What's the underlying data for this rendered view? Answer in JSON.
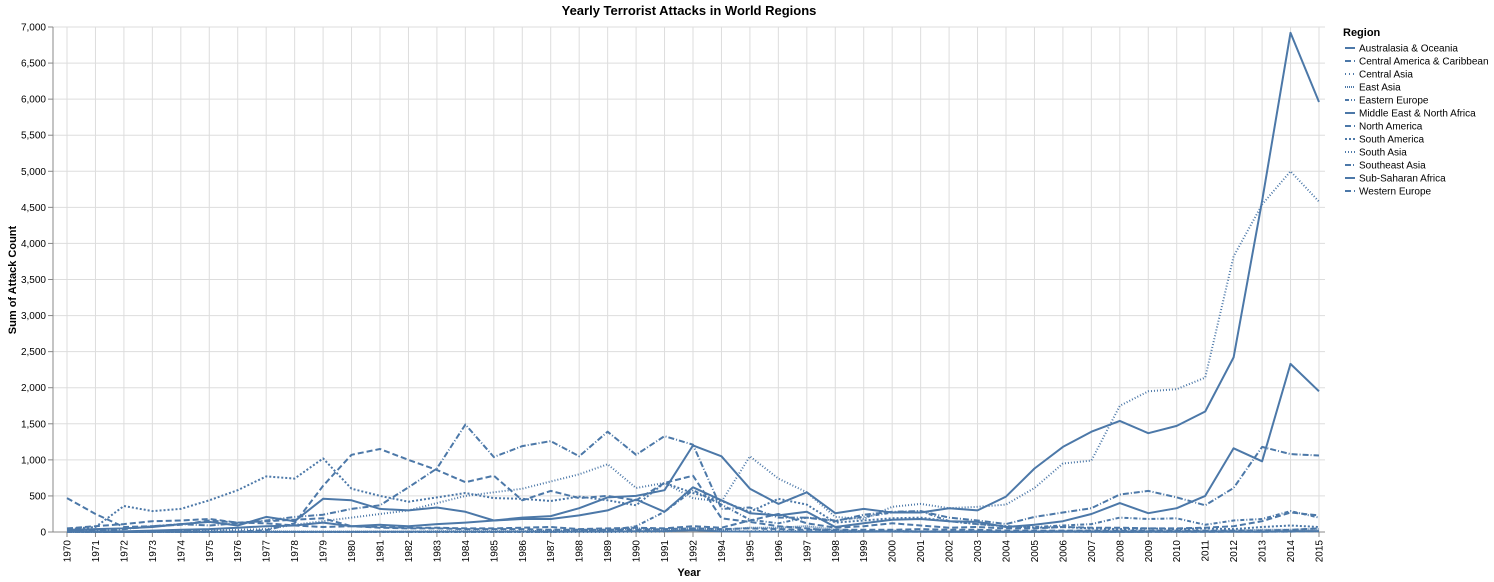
{
  "chart_data": {
    "type": "line",
    "title": "Yearly Terrorist Attacks in World Regions",
    "xlabel": "Year",
    "ylabel": "Sum of Attack Count",
    "ylim": [
      0,
      7000
    ],
    "yticks": [
      0,
      500,
      1000,
      1500,
      2000,
      2500,
      3000,
      3500,
      4000,
      4500,
      5000,
      5500,
      6000,
      6500,
      7000
    ],
    "ytick_labels": [
      "0",
      "500",
      "1,000",
      "1,500",
      "2,000",
      "2,500",
      "3,000",
      "3,500",
      "4,000",
      "4,500",
      "5,000",
      "5,500",
      "6,000",
      "6,500",
      "7,000"
    ],
    "grid": true,
    "legend_title": "Region",
    "legend_position": "right",
    "color": "#4c78a8",
    "x": [
      "1970",
      "1971",
      "1972",
      "1973",
      "1974",
      "1975",
      "1976",
      "1977",
      "1978",
      "1979",
      "1980",
      "1981",
      "1982",
      "1983",
      "1984",
      "1985",
      "1986",
      "1987",
      "1988",
      "1989",
      "1990",
      "1991",
      "1992",
      "1994",
      "1995",
      "1996",
      "1997",
      "1998",
      "1999",
      "2000",
      "2001",
      "2002",
      "2003",
      "2004",
      "2005",
      "2006",
      "2007",
      "2008",
      "2009",
      "2010",
      "2011",
      "2012",
      "2013",
      "2014",
      "2015"
    ],
    "series": [
      {
        "name": "Australasia & Oceania",
        "dash": "",
        "values": [
          1,
          1,
          0,
          1,
          1,
          2,
          1,
          2,
          1,
          2,
          2,
          3,
          3,
          4,
          5,
          4,
          5,
          4,
          5,
          6,
          10,
          12,
          25,
          8,
          6,
          5,
          3,
          2,
          3,
          5,
          3,
          2,
          2,
          2,
          2,
          3,
          3,
          2,
          3,
          3,
          4,
          4,
          3,
          10,
          12
        ]
      },
      {
        "name": "Central America & Caribbean",
        "dash": "6,3",
        "values": [
          7,
          5,
          3,
          5,
          5,
          10,
          5,
          25,
          120,
          640,
          1070,
          1150,
          1000,
          860,
          690,
          780,
          440,
          570,
          470,
          500,
          440,
          680,
          780,
          190,
          140,
          80,
          50,
          10,
          10,
          5,
          5,
          5,
          5,
          3,
          3,
          5,
          5,
          3,
          3,
          5,
          3,
          5,
          5,
          6,
          10
        ]
      },
      {
        "name": "Central Asia",
        "dash": "1,3",
        "values": [
          0,
          0,
          0,
          0,
          0,
          0,
          0,
          0,
          0,
          0,
          0,
          0,
          0,
          0,
          0,
          0,
          0,
          0,
          0,
          0,
          3,
          5,
          30,
          15,
          10,
          20,
          10,
          3,
          5,
          15,
          10,
          5,
          3,
          5,
          3,
          5,
          3,
          3,
          5,
          3,
          10,
          8,
          5,
          6,
          10
        ]
      },
      {
        "name": "East Asia",
        "dash": "1,1",
        "values": [
          2,
          2,
          3,
          2,
          2,
          3,
          2,
          10,
          5,
          5,
          5,
          5,
          5,
          10,
          10,
          10,
          10,
          20,
          20,
          30,
          50,
          30,
          50,
          30,
          60,
          60,
          80,
          30,
          10,
          20,
          10,
          5,
          15,
          5,
          10,
          15,
          20,
          20,
          15,
          20,
          15,
          20,
          30,
          30,
          40
        ]
      },
      {
        "name": "Eastern Europe",
        "dash": "4,2,1,2",
        "values": [
          1,
          1,
          1,
          1,
          1,
          1,
          1,
          1,
          1,
          1,
          1,
          1,
          1,
          1,
          1,
          1,
          1,
          1,
          10,
          20,
          80,
          280,
          580,
          380,
          170,
          120,
          200,
          160,
          210,
          270,
          290,
          150,
          110,
          80,
          70,
          90,
          110,
          200,
          180,
          190,
          100,
          160,
          180,
          290,
          200
        ]
      },
      {
        "name": "Middle East & North Africa",
        "dash": "",
        "values": [
          30,
          40,
          50,
          70,
          110,
          140,
          90,
          210,
          150,
          460,
          440,
          320,
          300,
          340,
          280,
          160,
          200,
          220,
          330,
          480,
          500,
          580,
          1200,
          1050,
          600,
          390,
          550,
          260,
          320,
          270,
          270,
          330,
          300,
          490,
          880,
          1180,
          1390,
          1540,
          1370,
          1470,
          1670,
          2420,
          4590,
          6920,
          5960
        ]
      },
      {
        "name": "North America",
        "dash": "6,3",
        "values": [
          470,
          250,
          70,
          80,
          100,
          160,
          130,
          120,
          90,
          70,
          80,
          60,
          50,
          50,
          40,
          40,
          40,
          30,
          30,
          30,
          30,
          40,
          50,
          40,
          50,
          40,
          30,
          30,
          30,
          30,
          40,
          30,
          30,
          20,
          20,
          20,
          20,
          20,
          20,
          20,
          20,
          20,
          20,
          30,
          50
        ]
      },
      {
        "name": "South America",
        "dash": "2,2",
        "values": [
          40,
          70,
          360,
          290,
          320,
          440,
          580,
          770,
          740,
          1020,
          600,
          500,
          420,
          480,
          540,
          470,
          460,
          430,
          490,
          440,
          370,
          680,
          540,
          430,
          280,
          460,
          380,
          130,
          160,
          190,
          200,
          150,
          110,
          80,
          60,
          70,
          50,
          40,
          50,
          40,
          50,
          40,
          70,
          90,
          70
        ]
      },
      {
        "name": "South Asia",
        "dash": "1,2",
        "values": [
          5,
          10,
          5,
          5,
          10,
          20,
          30,
          40,
          100,
          150,
          200,
          250,
          300,
          400,
          500,
          550,
          600,
          700,
          800,
          940,
          610,
          680,
          470,
          420,
          1050,
          740,
          550,
          210,
          180,
          350,
          390,
          330,
          350,
          380,
          610,
          950,
          990,
          1750,
          1950,
          1980,
          2140,
          3820,
          4540,
          5000,
          4580
        ]
      },
      {
        "name": "Southeast Asia",
        "dash": "6,2,1,2",
        "values": [
          10,
          20,
          40,
          80,
          110,
          90,
          120,
          160,
          210,
          240,
          320,
          370,
          620,
          880,
          1490,
          1040,
          1190,
          1260,
          1050,
          1390,
          1070,
          1330,
          1210,
          320,
          340,
          200,
          200,
          150,
          240,
          280,
          290,
          200,
          160,
          110,
          210,
          270,
          330,
          520,
          570,
          480,
          370,
          610,
          1180,
          1080,
          1060
        ]
      },
      {
        "name": "Sub-Saharan Africa",
        "dash": "",
        "values": [
          10,
          10,
          10,
          20,
          30,
          40,
          60,
          80,
          90,
          130,
          80,
          100,
          80,
          110,
          130,
          160,
          180,
          180,
          230,
          300,
          450,
          280,
          620,
          440,
          260,
          230,
          280,
          70,
          120,
          170,
          180,
          150,
          140,
          70,
          100,
          150,
          250,
          400,
          260,
          330,
          500,
          1160,
          980,
          2330,
          1950
        ]
      },
      {
        "name": "Western Europe",
        "dash": "6,3",
        "values": [
          50,
          80,
          110,
          150,
          160,
          180,
          130,
          150,
          170,
          190,
          80,
          70,
          60,
          60,
          50,
          50,
          60,
          70,
          40,
          50,
          60,
          50,
          80,
          60,
          160,
          250,
          120,
          60,
          80,
          120,
          90,
          60,
          70,
          50,
          50,
          70,
          60,
          60,
          50,
          50,
          60,
          80,
          150,
          270,
          230
        ]
      }
    ]
  }
}
